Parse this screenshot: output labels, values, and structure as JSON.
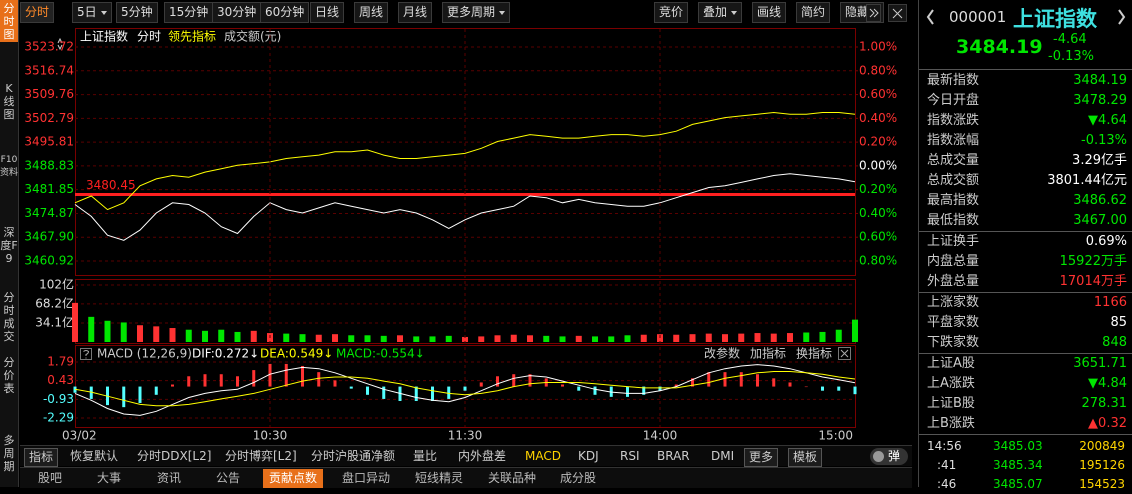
{
  "side_tabs": [
    "分时图",
    "K线图",
    "F10资料",
    "深度F9",
    "分时成交",
    "分价表",
    "多周期"
  ],
  "side_active": 0,
  "toolbar": {
    "periods": [
      "分时",
      "5日",
      "5分钟",
      "15分钟",
      "30分钟",
      "60分钟",
      "日线",
      "周线",
      "月线",
      "更多周期"
    ],
    "period_dropdowns": [
      1,
      9
    ],
    "period_active": 0,
    "tools": [
      "竞价",
      "叠加",
      "画线",
      "简约",
      "隐藏"
    ],
    "tool_dropdowns": [
      1,
      4
    ]
  },
  "chart_data": [
    {
      "type": "line",
      "series": [
        {
          "name": "上证指数",
          "color": "#ffffff",
          "values": [
            3477.5,
            3474,
            3468.5,
            3467,
            3470,
            3475,
            3478,
            3477.5,
            3475,
            3471,
            3469,
            3474,
            3478,
            3476,
            3475,
            3476.5,
            3478,
            3477,
            3476,
            3475,
            3476,
            3475,
            3473,
            3470.5,
            3473,
            3475,
            3476,
            3477,
            3480,
            3479.5,
            3478,
            3479,
            3478,
            3477.5,
            3477,
            3477,
            3478,
            3479.5,
            3481,
            3482.5,
            3483,
            3484,
            3485,
            3486,
            3486.5,
            3486,
            3485.5,
            3485,
            3484.19
          ]
        },
        {
          "name": "领先指标",
          "color": "#ffff00",
          "values": [
            3478,
            3480,
            3476,
            3478,
            3483,
            3485,
            3486,
            3485.5,
            3487,
            3488,
            3489,
            3489.5,
            3490,
            3491,
            3491.5,
            3492,
            3493,
            3493,
            3493.5,
            3492,
            3491,
            3491,
            3491.5,
            3492,
            3492.5,
            3494,
            3496,
            3497,
            3498,
            3497.5,
            3497,
            3497,
            3497.5,
            3498,
            3498,
            3497.5,
            3498,
            3499,
            3501,
            3502,
            3503,
            3503.5,
            3504,
            3504.5,
            3504,
            3504,
            3504.5,
            3504.5,
            3504
          ]
        }
      ],
      "mode": "分时",
      "volume_label": "成交额(元)",
      "ylim": [
        3460.92,
        3523.72
      ],
      "yticks": [
        3523.72,
        3516.74,
        3509.76,
        3502.79,
        3495.81,
        3488.83,
        3481.85,
        3474.87,
        {
          "value": 3467.9,
          "label": "3467.90"
        },
        3460.92
      ],
      "y2lim": [
        -0.8,
        1
      ],
      "y2ticks": [
        {
          "value": 1,
          "label": "1.00%"
        },
        {
          "value": 0.8,
          "label": "0.80%"
        },
        {
          "value": 0.6,
          "label": "0.60%"
        },
        {
          "value": 0.4,
          "label": "0.40%"
        },
        {
          "value": 0.2,
          "label": "0.20%"
        },
        {
          "value": 0,
          "label": "0.00%"
        },
        {
          "value": -0.2,
          "label": "0.20%"
        },
        {
          "value": -0.4,
          "label": "0.40%"
        },
        {
          "value": -0.6,
          "label": "0.60%"
        },
        {
          "value": -0.8,
          "label": "0.80%"
        }
      ],
      "reference_line": 3480.45,
      "reference_color": "#ff2020",
      "grid": true,
      "up_color": "#ff3232",
      "down_color": "#00e600",
      "flat_color": "#ffffff"
    },
    {
      "type": "bar",
      "values": [
        70,
        45,
        38,
        35,
        30,
        28,
        25,
        22,
        20,
        22,
        18,
        20,
        16,
        15,
        14,
        13,
        14,
        12,
        12,
        11,
        12,
        10,
        10,
        11,
        9,
        10,
        12,
        13,
        12,
        11,
        10,
        11,
        10,
        10,
        12,
        13,
        14,
        13,
        14,
        15,
        14,
        15,
        16,
        15,
        16,
        17,
        18,
        22,
        40
      ],
      "ylim": [
        0,
        102
      ],
      "yticks": [
        {
          "value": 102,
          "label": "102亿"
        },
        {
          "value": 68.2,
          "label": "68.2亿"
        },
        {
          "value": 34.1,
          "label": "34.1亿"
        }
      ]
    },
    {
      "type": "macd",
      "title": "MACD (12,26,9)",
      "categories": [
        "03/02",
        null,
        null,
        null,
        null,
        null,
        null,
        null,
        null,
        null,
        null,
        null,
        "10:30",
        null,
        null,
        null,
        null,
        null,
        null,
        null,
        null,
        null,
        null,
        null,
        "11:30",
        null,
        null,
        null,
        null,
        null,
        null,
        null,
        null,
        null,
        null,
        null,
        "14:00",
        null,
        null,
        null,
        null,
        null,
        null,
        null,
        null,
        null,
        null,
        null,
        "15:00"
      ],
      "series": [
        {
          "name": "DIF:0.272↓",
          "color": "#ffffff",
          "values": [
            -0.5,
            -1,
            -1.6,
            -2,
            -2.1,
            -1.8,
            -1.3,
            -0.8,
            -0.5,
            -0.3,
            -0.2,
            0.3,
            0.9,
            1.2,
            1.4,
            1.3,
            1,
            0.6,
            0.2,
            -0.2,
            -0.5,
            -0.8,
            -1,
            -1.1,
            -0.8,
            -0.3,
            0.2,
            0.6,
            0.8,
            0.7,
            0.4,
            0.1,
            -0.2,
            -0.4,
            -0.5,
            -0.5,
            -0.3,
            0,
            0.5,
            1,
            1.3,
            1.5,
            1.6,
            1.5,
            1.3,
            1,
            0.7,
            0.5,
            0.272
          ]
        },
        {
          "name": "DEA:0.549↓",
          "color": "#ffff00",
          "values": [
            -0.2,
            -0.4,
            -0.7,
            -1,
            -1.3,
            -1.4,
            -1.4,
            -1.3,
            -1.1,
            -0.9,
            -0.7,
            -0.5,
            -0.2,
            0.1,
            0.4,
            0.6,
            0.7,
            0.7,
            0.6,
            0.4,
            0.2,
            -0.1,
            -0.3,
            -0.5,
            -0.6,
            -0.5,
            -0.3,
            0,
            0.2,
            0.3,
            0.3,
            0.3,
            0.2,
            0.1,
            0,
            -0.1,
            -0.1,
            -0.1,
            0.1,
            0.3,
            0.6,
            0.8,
            1,
            1.1,
            1.1,
            1,
            0.9,
            0.7,
            0.549
          ]
        },
        {
          "name": "MACD:-0.554↓",
          "color": "#00e600",
          "values": [
            -0.45,
            -0.9,
            -1.35,
            -1.5,
            -1.2,
            -0.6,
            0.15,
            0.75,
            0.9,
            0.9,
            0.75,
            1.2,
            1.65,
            1.65,
            1.5,
            1.05,
            0.45,
            -0.15,
            -0.6,
            -0.9,
            -1.05,
            -1.05,
            -1.05,
            -0.9,
            -0.3,
            0.3,
            0.75,
            0.9,
            0.9,
            0.6,
            0.15,
            -0.3,
            -0.6,
            -0.75,
            -0.75,
            -0.6,
            -0.3,
            0.15,
            0.6,
            1.05,
            1.05,
            1.05,
            0.9,
            0.6,
            0.3,
            0,
            -0.3,
            -0.3,
            -0.554
          ]
        }
      ],
      "bar_series": 2,
      "up_color": "#ff3232",
      "down_color": "#54ffff",
      "ylim": [
        -2.29,
        1.79
      ],
      "yticks": [
        1.79,
        0.43,
        -0.93,
        -2.29
      ],
      "buttons": [
        "改参数",
        "加指标",
        "换指标"
      ]
    }
  ],
  "indicator_bar": {
    "label": "指标",
    "tabs": [
      "恢复默认",
      "分时DDX[L2]",
      "分时博弈[L2]",
      "分时沪股通净额",
      "量比",
      "内外盘差",
      "MACD",
      "KDJ",
      "RSI",
      "BRAR",
      "DMI"
    ],
    "active": 6,
    "more": "更多",
    "template": "模板",
    "popup": "弹"
  },
  "bottom_tabs": {
    "tabs": [
      "股吧",
      "大事",
      "资讯",
      "公告",
      "贡献点数",
      "盘口异动",
      "短线精灵",
      "关联品种",
      "成分股"
    ],
    "active": 4
  },
  "quote": {
    "code": "000001",
    "name": "上证指数",
    "price": "3484.19",
    "change": "-4.64",
    "change_pct": "-0.13%",
    "color": "#00e600"
  },
  "quote_table": [
    [
      {
        "label": "最新指数",
        "value": "3484.19",
        "color": "#00e600"
      },
      {
        "label": "今日开盘",
        "value": "3478.29",
        "color": "#00e600"
      },
      {
        "label": "指数涨跌",
        "value": "▼4.64",
        "color": "#00e600"
      },
      {
        "label": "指数涨幅",
        "value": "-0.13%",
        "color": "#00e600"
      },
      {
        "label": "总成交量",
        "value": "3.29亿手",
        "color": "#ffffff"
      },
      {
        "label": "总成交额",
        "value": "3801.44亿元",
        "color": "#ffffff"
      },
      {
        "label": "最高指数",
        "value": "3486.62",
        "color": "#00e600"
      },
      {
        "label": "最低指数",
        "value": "3467.00",
        "color": "#00e600"
      }
    ],
    [
      {
        "label": "上证换手",
        "value": "0.69%",
        "color": "#ffffff"
      },
      {
        "label": "内盘总量",
        "value": "15922万手",
        "color": "#00e600"
      },
      {
        "label": "外盘总量",
        "value": "17014万手",
        "color": "#ff3232"
      }
    ],
    [
      {
        "label": "上涨家数",
        "value": "1166",
        "color": "#ff3232"
      },
      {
        "label": "平盘家数",
        "value": "85",
        "color": "#ffffff"
      },
      {
        "label": "下跌家数",
        "value": "848",
        "color": "#00e600"
      }
    ],
    [
      {
        "label": "上证A股",
        "value": "3651.71",
        "color": "#00e600"
      },
      {
        "label": "上A涨跌",
        "value": "▼4.84",
        "color": "#00e600"
      },
      {
        "label": "上证B股",
        "value": "278.31",
        "color": "#00e600"
      },
      {
        "label": "上B涨跌",
        "value": "▲0.32",
        "color": "#ff3232"
      }
    ]
  ],
  "trades": [
    {
      "time": "14:56",
      "price": "3485.03",
      "volume": "200849"
    },
    {
      "time": ":41",
      "price": "3485.34",
      "volume": "195126"
    },
    {
      "time": ":46",
      "price": "3485.07",
      "volume": "154523"
    }
  ]
}
